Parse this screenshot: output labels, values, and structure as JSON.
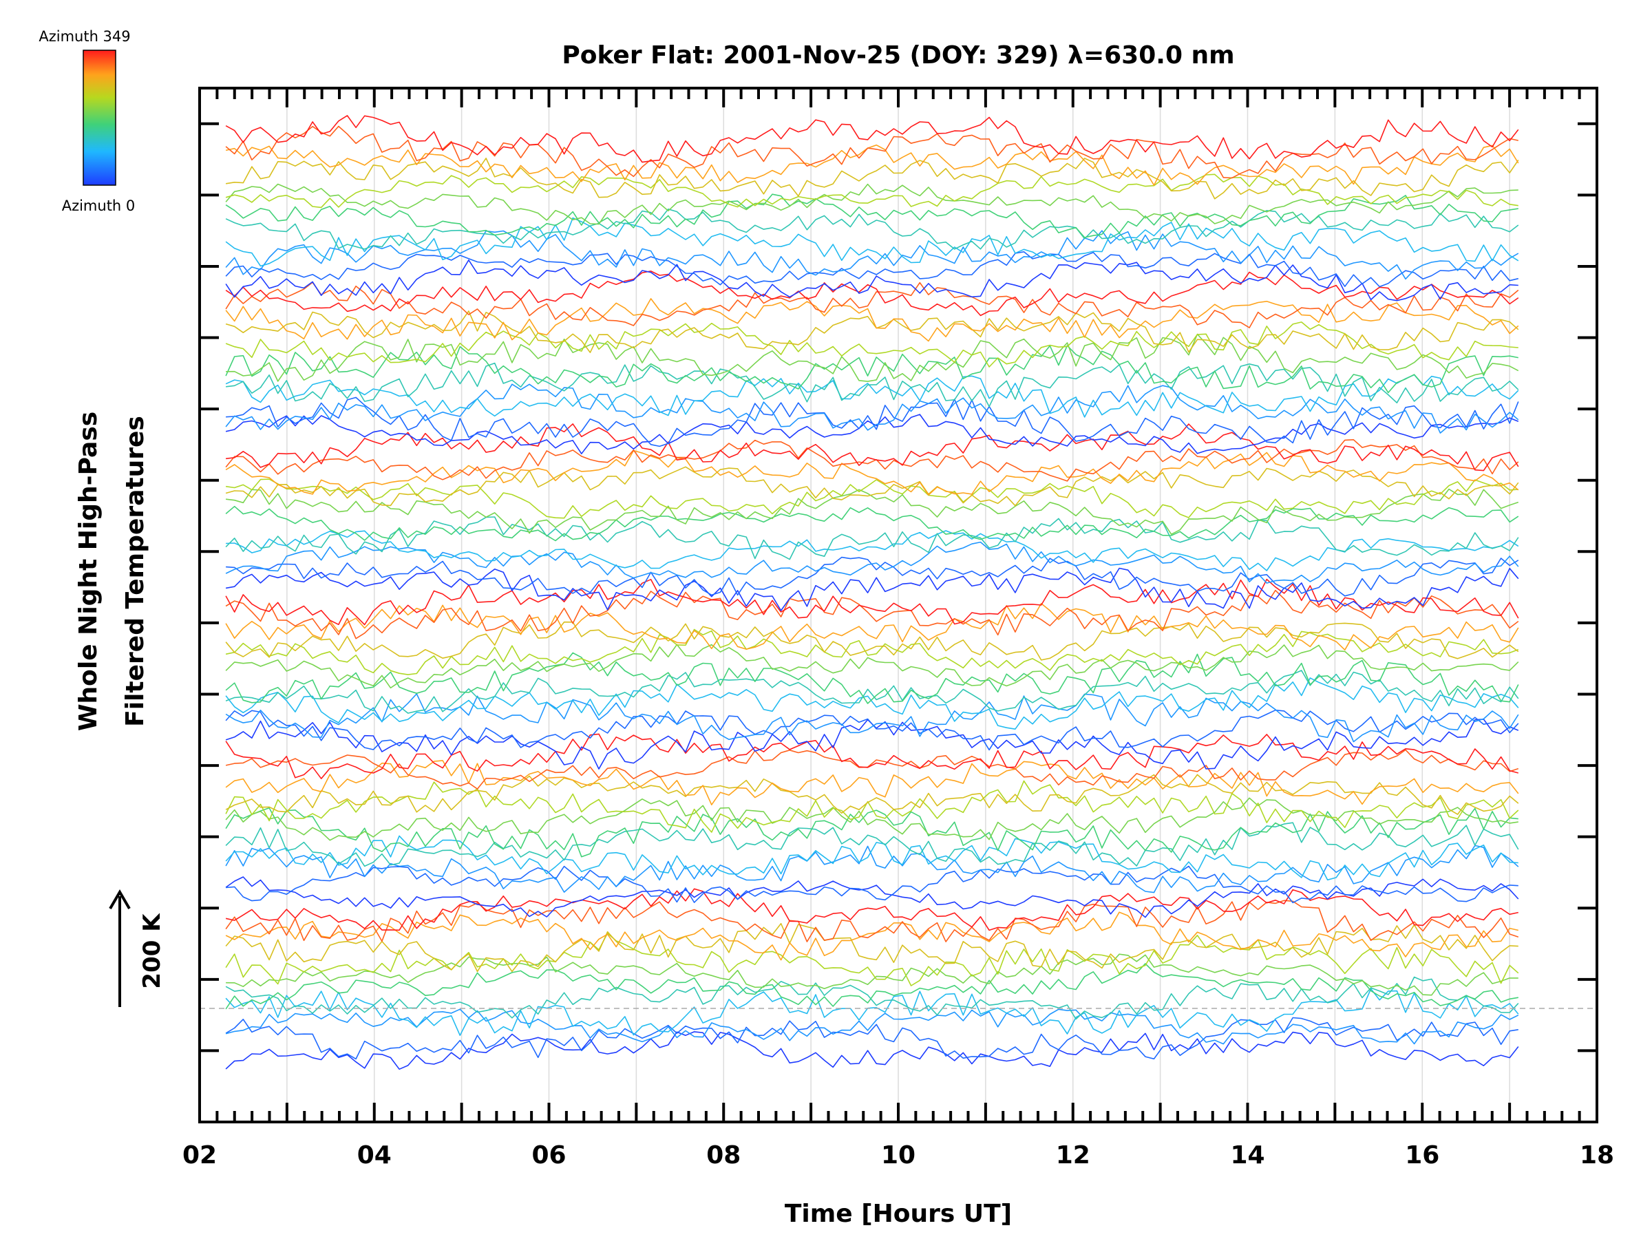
{
  "chart_data": {
    "type": "line",
    "title": "Poker Flat: 2001-Nov-25 (DOY: 329) λ=630.0 nm",
    "xlabel": "Time [Hours UT]",
    "ylabel_line1": "Whole Night High-Pass",
    "ylabel_line2": "Filtered Temperatures",
    "xlim": [
      2,
      18
    ],
    "x_tick_labels": [
      "02",
      "04",
      "06",
      "08",
      "10",
      "12",
      "14",
      "16",
      "18"
    ],
    "x_data_range": [
      2.3,
      17.1
    ],
    "y_units": "K offset",
    "ylim": [
      -1000,
      13500
    ],
    "scale_bar_label": "200 K",
    "scale_bar_value": 1000,
    "colorbar": {
      "top_label": "Azimuth 349",
      "bottom_label": "Azimuth 0",
      "min": 0,
      "max": 349,
      "colormap": "rainbow"
    },
    "grid": true,
    "series_count": 72,
    "series_offset_step": 180,
    "legend": "top-left colorbar"
  }
}
